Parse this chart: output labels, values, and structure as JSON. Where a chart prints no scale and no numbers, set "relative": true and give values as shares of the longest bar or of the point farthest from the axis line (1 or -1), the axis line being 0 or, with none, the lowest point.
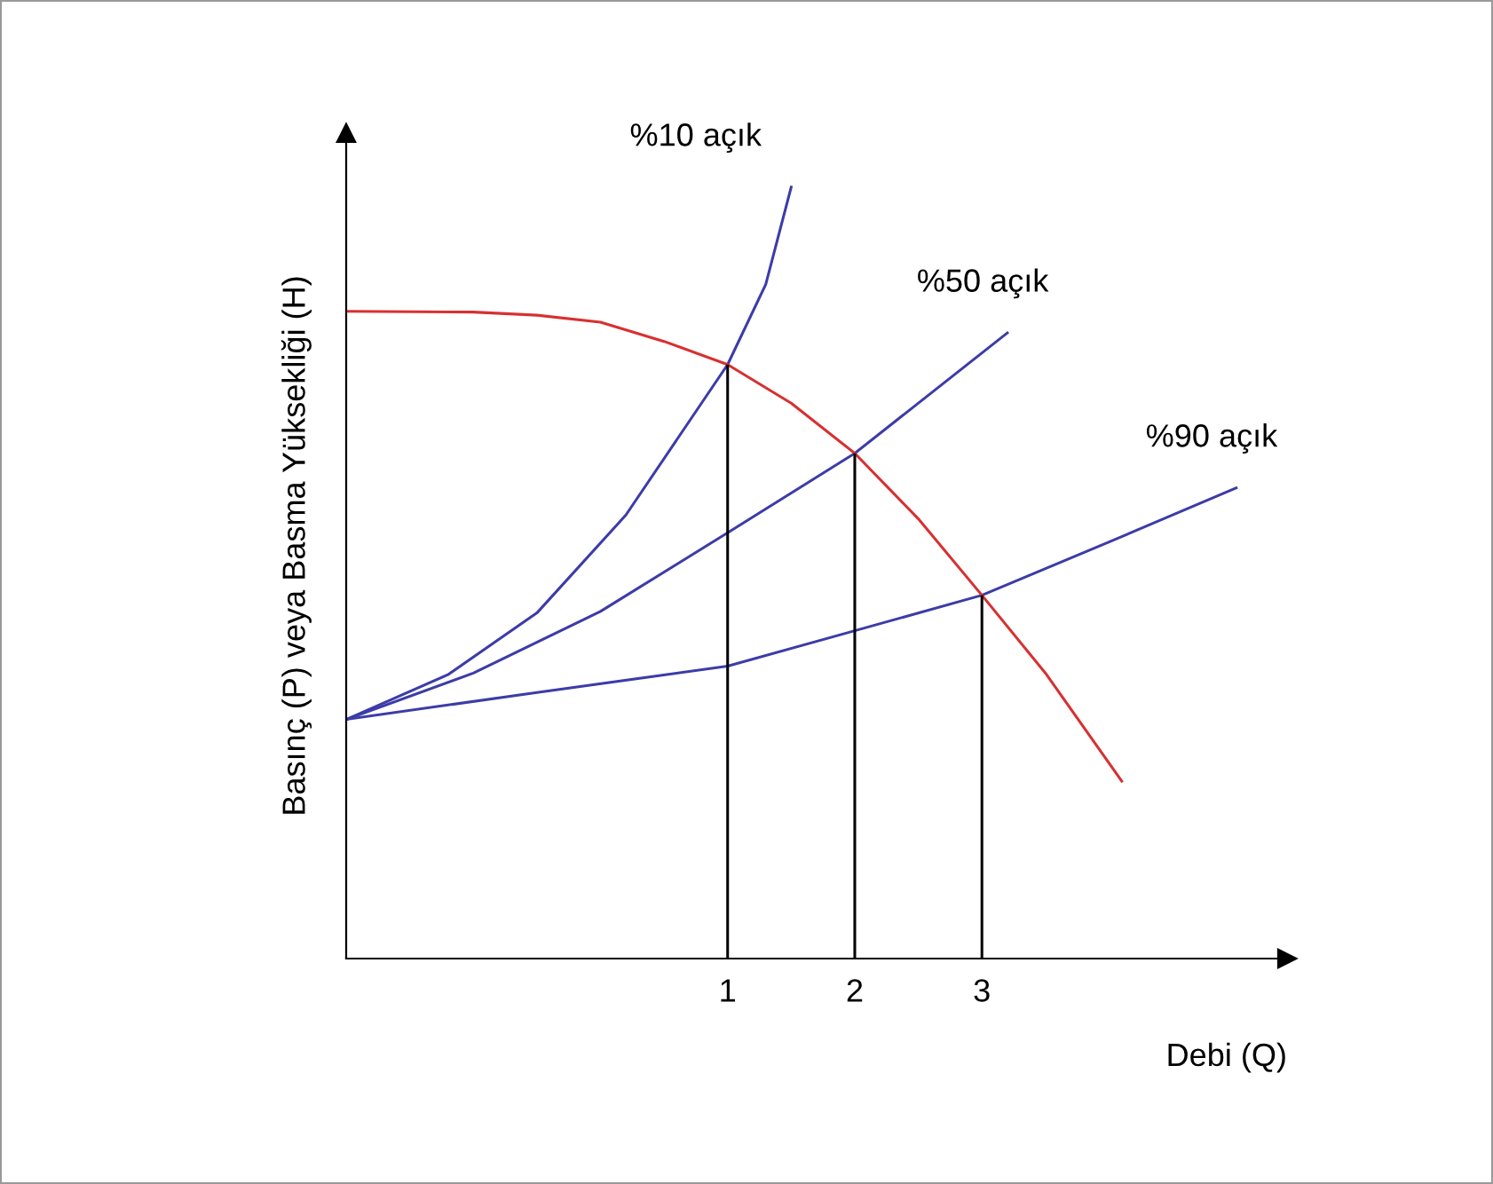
{
  "chart_data": {
    "type": "line",
    "xlabel": "Debi (Q)",
    "ylabel": "Basınç (P) veya Basma Yüksekliği (H)",
    "relative": true,
    "xlim": [
      -2,
      5.4
    ],
    "xticks": [
      1,
      2,
      3
    ],
    "grid": false,
    "legend": false,
    "marker": "none",
    "line_style": "solid",
    "series": [
      {
        "name": "%10 açık",
        "color": "#3c3ca8",
        "x": [
          -2,
          -1.2,
          -0.5,
          0.2,
          1,
          1.3,
          1.5
        ],
        "values": [
          0.31,
          0.368,
          0.448,
          0.575,
          0.77,
          0.874,
          1
        ]
      },
      {
        "name": "%50 açık",
        "color": "#3c3ca8",
        "x": [
          -2,
          -1,
          0,
          1,
          2,
          3.2
        ],
        "values": [
          0.31,
          0.37,
          0.45,
          0.552,
          0.655,
          0.811
        ]
      },
      {
        "name": "%90 açık",
        "color": "#3c3ca8",
        "x": [
          -2,
          -0.5,
          1,
          2,
          3,
          4,
          5
        ],
        "values": [
          0.31,
          0.345,
          0.379,
          0.425,
          0.471,
          0.54,
          0.61
        ]
      },
      {
        "color": "#d83030",
        "x": [
          -2,
          -1,
          -0.5,
          0,
          0.5,
          1,
          1.5,
          2,
          2.5,
          3,
          3.5,
          4.1
        ],
        "values": [
          0.839,
          0.838,
          0.834,
          0.825,
          0.8,
          0.77,
          0.72,
          0.655,
          0.57,
          0.471,
          0.37,
          0.23
        ]
      }
    ],
    "ref_lines": [
      {
        "axis": "x",
        "value": 1,
        "color": "#000000"
      },
      {
        "axis": "x",
        "value": 2,
        "color": "#000000"
      },
      {
        "axis": "x",
        "value": 3,
        "color": "#000000"
      }
    ]
  }
}
